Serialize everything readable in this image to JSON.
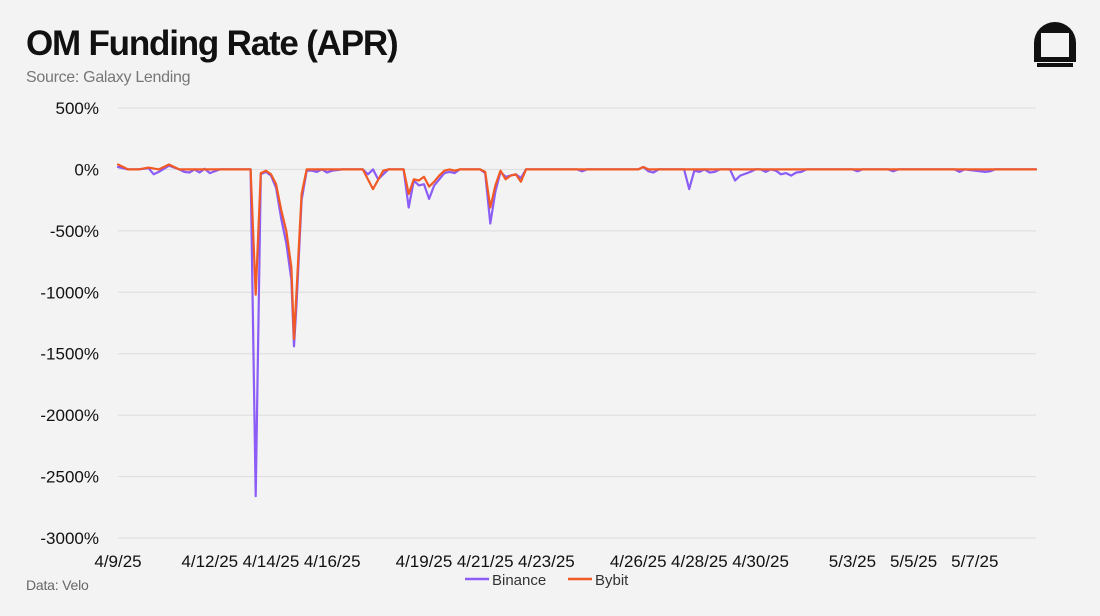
{
  "title": "OM Funding Rate (APR)",
  "subtitle": "Source: Galaxy Lending",
  "footnote": "Data: Velo",
  "colors": {
    "binance": "#8b5cf6",
    "bybit": "#f15a24",
    "grid": "#dcdcdc",
    "background": "#f3f3f3",
    "text": "#111111"
  },
  "logo_icon": "galaxy-logo-icon",
  "chart_data": {
    "type": "line",
    "title": "OM Funding Rate (APR)",
    "xlabel": "",
    "ylabel": "",
    "ylim": [
      -3000,
      500
    ],
    "yticks": [
      500,
      0,
      -500,
      -1000,
      -1500,
      -2000,
      -2500,
      -3000
    ],
    "ytick_labels": [
      "500%",
      "0%",
      "-500%",
      "-1000%",
      "-1500%",
      "-2000%",
      "-2500%",
      "-3000%"
    ],
    "xlim": [
      "4/9/25",
      "5/9/25"
    ],
    "xtick_labels": [
      "4/9/25",
      "4/12/25",
      "4/14/25",
      "4/16/25",
      "4/19/25",
      "4/21/25",
      "4/23/25",
      "4/26/25",
      "4/28/25",
      "4/30/25",
      "5/3/25",
      "5/5/25",
      "5/7/25"
    ],
    "grid": true,
    "legend_position": "bottom-center",
    "x_unit": "date",
    "series": [
      {
        "name": "Binance",
        "color": "#8b5cf6",
        "points": [
          [
            "4/9/25 00:00",
            20
          ],
          [
            "4/9/25 08:00",
            0
          ],
          [
            "4/9/25 16:00",
            0
          ],
          [
            "4/10/25 00:00",
            10
          ],
          [
            "4/10/25 04:00",
            -40
          ],
          [
            "4/10/25 08:00",
            -20
          ],
          [
            "4/10/25 16:00",
            30
          ],
          [
            "4/11/25 00:00",
            0
          ],
          [
            "4/11/25 04:00",
            -20
          ],
          [
            "4/11/25 08:00",
            -25
          ],
          [
            "4/11/25 12:00",
            0
          ],
          [
            "4/11/25 16:00",
            -25
          ],
          [
            "4/11/25 20:00",
            5
          ],
          [
            "4/12/25 00:00",
            -30
          ],
          [
            "4/12/25 08:00",
            0
          ],
          [
            "4/13/25 08:00",
            0
          ],
          [
            "4/13/25 12:00",
            -2660
          ],
          [
            "4/13/25 16:00",
            -40
          ],
          [
            "4/13/25 20:00",
            -20
          ],
          [
            "4/14/25 00:00",
            -50
          ],
          [
            "4/14/25 04:00",
            -150
          ],
          [
            "4/14/25 08:00",
            -400
          ],
          [
            "4/14/25 12:00",
            -600
          ],
          [
            "4/14/25 16:00",
            -900
          ],
          [
            "4/14/25 18:00",
            -1440
          ],
          [
            "4/14/25 20:00",
            -1100
          ],
          [
            "4/15/25 00:00",
            -250
          ],
          [
            "4/15/25 04:00",
            -10
          ],
          [
            "4/15/25 08:00",
            -10
          ],
          [
            "4/15/25 12:00",
            -20
          ],
          [
            "4/15/25 16:00",
            0
          ],
          [
            "4/15/25 20:00",
            -25
          ],
          [
            "4/16/25 00:00",
            -10
          ],
          [
            "4/16/25 08:00",
            0
          ],
          [
            "4/17/25 00:00",
            0
          ],
          [
            "4/17/25 04:00",
            -40
          ],
          [
            "4/17/25 08:00",
            0
          ],
          [
            "4/17/25 12:00",
            -80
          ],
          [
            "4/17/25 20:00",
            0
          ],
          [
            "4/18/25 08:00",
            0
          ],
          [
            "4/18/25 12:00",
            -310
          ],
          [
            "4/18/25 16:00",
            -90
          ],
          [
            "4/18/25 20:00",
            -130
          ],
          [
            "4/19/25 00:00",
            -120
          ],
          [
            "4/19/25 04:00",
            -240
          ],
          [
            "4/19/25 08:00",
            -130
          ],
          [
            "4/19/25 12:00",
            -80
          ],
          [
            "4/19/25 16:00",
            -30
          ],
          [
            "4/19/25 20:00",
            -20
          ],
          [
            "4/20/25 00:00",
            -30
          ],
          [
            "4/20/25 04:00",
            0
          ],
          [
            "4/20/25 20:00",
            0
          ],
          [
            "4/21/25 00:00",
            -30
          ],
          [
            "4/21/25 04:00",
            -440
          ],
          [
            "4/21/25 08:00",
            -180
          ],
          [
            "4/21/25 12:00",
            -20
          ],
          [
            "4/21/25 16:00",
            -60
          ],
          [
            "4/21/25 20:00",
            -50
          ],
          [
            "4/22/25 00:00",
            -40
          ],
          [
            "4/22/25 04:00",
            -70
          ],
          [
            "4/22/25 08:00",
            0
          ],
          [
            "4/24/25 00:00",
            0
          ],
          [
            "4/24/25 04:00",
            -15
          ],
          [
            "4/24/25 08:00",
            0
          ],
          [
            "4/26/25 00:00",
            0
          ],
          [
            "4/26/25 04:00",
            20
          ],
          [
            "4/26/25 08:00",
            -15
          ],
          [
            "4/26/25 12:00",
            -25
          ],
          [
            "4/26/25 16:00",
            0
          ],
          [
            "4/27/25 12:00",
            0
          ],
          [
            "4/27/25 16:00",
            -160
          ],
          [
            "4/27/25 20:00",
            -10
          ],
          [
            "4/28/25 00:00",
            -20
          ],
          [
            "4/28/25 04:00",
            0
          ],
          [
            "4/28/25 08:00",
            -25
          ],
          [
            "4/28/25 12:00",
            -20
          ],
          [
            "4/28/25 16:00",
            0
          ],
          [
            "4/29/25 00:00",
            0
          ],
          [
            "4/29/25 04:00",
            -90
          ],
          [
            "4/29/25 08:00",
            -50
          ],
          [
            "4/29/25 16:00",
            -20
          ],
          [
            "4/29/25 20:00",
            0
          ],
          [
            "4/30/25 00:00",
            0
          ],
          [
            "4/30/25 04:00",
            -20
          ],
          [
            "4/30/25 08:00",
            0
          ],
          [
            "4/30/25 12:00",
            -10
          ],
          [
            "4/30/25 16:00",
            -40
          ],
          [
            "4/30/25 20:00",
            -30
          ],
          [
            "5/1/25 00:00",
            -50
          ],
          [
            "5/1/25 04:00",
            -25
          ],
          [
            "5/1/25 08:00",
            -20
          ],
          [
            "5/1/25 12:00",
            0
          ],
          [
            "5/3/25 00:00",
            0
          ],
          [
            "5/3/25 04:00",
            -15
          ],
          [
            "5/3/25 08:00",
            0
          ],
          [
            "5/4/25 04:00",
            0
          ],
          [
            "5/4/25 08:00",
            -15
          ],
          [
            "5/4/25 12:00",
            0
          ],
          [
            "5/6/25 08:00",
            0
          ],
          [
            "5/6/25 12:00",
            -20
          ],
          [
            "5/6/25 16:00",
            0
          ],
          [
            "5/7/25 00:00",
            -10
          ],
          [
            "5/7/25 08:00",
            -20
          ],
          [
            "5/7/25 12:00",
            -15
          ],
          [
            "5/7/25 16:00",
            0
          ],
          [
            "5/9/25 00:00",
            0
          ]
        ]
      },
      {
        "name": "Bybit",
        "color": "#f15a24",
        "points": [
          [
            "4/9/25 00:00",
            40
          ],
          [
            "4/9/25 08:00",
            0
          ],
          [
            "4/9/25 16:00",
            0
          ],
          [
            "4/10/25 00:00",
            15
          ],
          [
            "4/10/25 08:00",
            0
          ],
          [
            "4/10/25 16:00",
            40
          ],
          [
            "4/11/25 00:00",
            0
          ],
          [
            "4/13/25 08:00",
            0
          ],
          [
            "4/13/25 12:00",
            -1020
          ],
          [
            "4/13/25 16:00",
            -30
          ],
          [
            "4/13/25 20:00",
            -10
          ],
          [
            "4/14/25 00:00",
            -40
          ],
          [
            "4/14/25 04:00",
            -120
          ],
          [
            "4/14/25 08:00",
            -330
          ],
          [
            "4/14/25 12:00",
            -500
          ],
          [
            "4/14/25 16:00",
            -800
          ],
          [
            "4/14/25 18:00",
            -1380
          ],
          [
            "4/14/25 20:00",
            -1000
          ],
          [
            "4/15/25 00:00",
            -200
          ],
          [
            "4/15/25 04:00",
            0
          ],
          [
            "4/16/25 00:00",
            0
          ],
          [
            "4/16/25 08:00",
            0
          ],
          [
            "4/17/25 00:00",
            0
          ],
          [
            "4/17/25 08:00",
            -160
          ],
          [
            "4/17/25 16:00",
            -10
          ],
          [
            "4/17/25 20:00",
            0
          ],
          [
            "4/18/25 08:00",
            0
          ],
          [
            "4/18/25 12:00",
            -200
          ],
          [
            "4/18/25 16:00",
            -80
          ],
          [
            "4/18/25 20:00",
            -90
          ],
          [
            "4/19/25 00:00",
            -60
          ],
          [
            "4/19/25 04:00",
            -140
          ],
          [
            "4/19/25 08:00",
            -100
          ],
          [
            "4/19/25 12:00",
            -50
          ],
          [
            "4/19/25 16:00",
            -10
          ],
          [
            "4/19/25 20:00",
            0
          ],
          [
            "4/20/25 00:00",
            -10
          ],
          [
            "4/20/25 04:00",
            0
          ],
          [
            "4/20/25 20:00",
            0
          ],
          [
            "4/21/25 00:00",
            -20
          ],
          [
            "4/21/25 04:00",
            -310
          ],
          [
            "4/21/25 08:00",
            -130
          ],
          [
            "4/21/25 12:00",
            -10
          ],
          [
            "4/21/25 16:00",
            -80
          ],
          [
            "4/21/25 20:00",
            -50
          ],
          [
            "4/22/25 00:00",
            -40
          ],
          [
            "4/22/25 04:00",
            -100
          ],
          [
            "4/22/25 08:00",
            0
          ],
          [
            "4/26/25 00:00",
            0
          ],
          [
            "4/26/25 04:00",
            20
          ],
          [
            "4/26/25 08:00",
            0
          ],
          [
            "5/9/25 00:00",
            0
          ]
        ]
      }
    ]
  }
}
